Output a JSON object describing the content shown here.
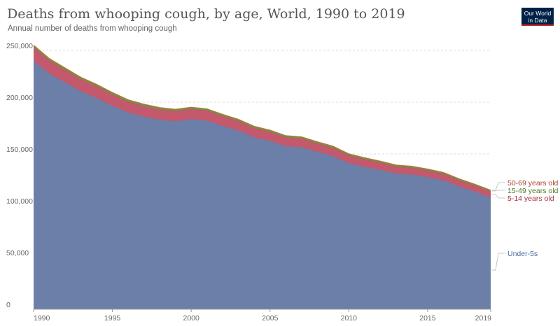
{
  "header": {
    "title": "Deaths from whooping cough, by age, World, 1990 to 2019",
    "subtitle": "Annual number of deaths from whooping cough",
    "logo_line1": "Our World",
    "logo_line2": "in Data"
  },
  "colors": {
    "under5": "#6b7fa8",
    "age5_14": "#c15065",
    "age15_49": "#6d8c3c",
    "age50_69": "#d26c3c",
    "grid": "#dddddd",
    "axis": "#999999"
  },
  "chart_data": {
    "type": "area",
    "stacked": true,
    "x": [
      1990,
      1991,
      1992,
      1993,
      1994,
      1995,
      1996,
      1997,
      1998,
      1999,
      2000,
      2001,
      2002,
      2003,
      2004,
      2005,
      2006,
      2007,
      2008,
      2009,
      2010,
      2011,
      2012,
      2013,
      2014,
      2015,
      2016,
      2017,
      2018,
      2019
    ],
    "series": [
      {
        "name": "Under-5s",
        "color": "#6b7fa8",
        "values": [
          240000,
          227500,
          219000,
          210500,
          204000,
          196500,
          190000,
          186000,
          183000,
          181500,
          183500,
          182000,
          177000,
          172500,
          166000,
          162500,
          157500,
          156500,
          152000,
          148000,
          141000,
          137500,
          134500,
          131000,
          130000,
          127500,
          124500,
          118500,
          113500,
          108000
        ]
      },
      {
        "name": "5-14 years old",
        "color": "#c15065",
        "values": [
          13000,
          12500,
          12000,
          11500,
          11200,
          10800,
          10300,
          10100,
          9900,
          9700,
          9800,
          9700,
          9400,
          9100,
          8900,
          8700,
          8400,
          8300,
          8100,
          7800,
          7500,
          7200,
          7000,
          6800,
          6600,
          6400,
          6200,
          6000,
          5800,
          5600
        ]
      },
      {
        "name": "15-49 years old",
        "color": "#6d8c3c",
        "values": [
          1800,
          1780,
          1760,
          1740,
          1720,
          1700,
          1680,
          1660,
          1640,
          1620,
          1600,
          1580,
          1560,
          1540,
          1520,
          1500,
          1480,
          1460,
          1440,
          1420,
          1400,
          1380,
          1360,
          1340,
          1320,
          1300,
          1280,
          1260,
          1240,
          1220
        ]
      },
      {
        "name": "50-69 years old",
        "color": "#d26c3c",
        "values": [
          500,
          490,
          480,
          470,
          460,
          450,
          440,
          430,
          420,
          410,
          400,
          395,
          390,
          385,
          380,
          375,
          370,
          365,
          360,
          355,
          350,
          345,
          340,
          335,
          330,
          325,
          320,
          315,
          310,
          305
        ]
      }
    ],
    "xlim": [
      1990,
      2019
    ],
    "ylim": [
      0,
      250000
    ],
    "yticks": [
      0,
      50000,
      100000,
      150000,
      200000,
      250000
    ],
    "ytick_labels": [
      "0",
      "50,000",
      "100,000",
      "150,000",
      "200,000",
      "250,000"
    ],
    "xticks": [
      1990,
      1995,
      2000,
      2005,
      2010,
      2015,
      2019
    ],
    "xtick_labels": [
      "1990",
      "1995",
      "2000",
      "2005",
      "2010",
      "2015",
      "2019"
    ],
    "legend_labels": [
      "50-69 years old",
      "15-49 years old",
      "5-14 years old",
      "Under-5s"
    ],
    "grid": true,
    "legend_placement": "right, labels beside series ends"
  }
}
